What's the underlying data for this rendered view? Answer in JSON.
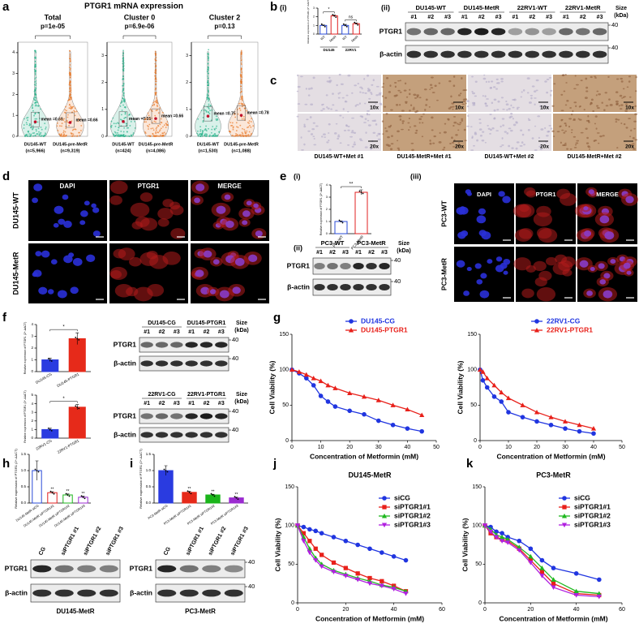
{
  "figure": {
    "a": {
      "label": "a",
      "title": "PTGR1 mRNA expression"
    },
    "b": {
      "label": "b",
      "sub": [
        "(i)",
        "(ii)"
      ],
      "blot": {
        "groups": [
          "DU145-WT",
          "DU145-MetR",
          "22RV1-WT",
          "22RV1-MetR"
        ],
        "lanes": [
          "#1",
          "#2",
          "#3",
          "#1",
          "#2",
          "#3",
          "#1",
          "#2",
          "#3",
          "#1",
          "#2",
          "#3"
        ],
        "rows": [
          "PTGR1",
          "β-actin"
        ],
        "size_header": [
          "Size",
          "(kDa)"
        ],
        "size_markers": [
          40,
          40
        ]
      }
    },
    "c": {
      "label": "c",
      "magnifications": [
        "10x",
        "10x",
        "10x",
        "10x",
        "20x",
        "20x",
        "20x",
        "20x"
      ],
      "captions": [
        "DU145-WT+Met #1",
        "DU145-MetR+Met #1",
        "DU145-WT+Met #2",
        "DU145-MetR+Met #2"
      ]
    },
    "d": {
      "label": "d",
      "columns": [
        "DAPI",
        "PTGR1",
        "MERGE"
      ],
      "rows": [
        "DU145-WT",
        "DU145-MetR"
      ]
    },
    "e": {
      "label": "e",
      "sub": [
        "(i)",
        "(ii)",
        "(iii)"
      ],
      "blot": {
        "groups": [
          "PC3-WT",
          "PC3-MetR"
        ],
        "lanes": [
          "#1",
          "#2",
          "#3",
          "#1",
          "#2",
          "#3"
        ],
        "rows": [
          "PTGR1",
          "β-actin"
        ],
        "size_header": [
          "Size",
          "(kDa)"
        ],
        "size_markers": [
          40,
          40
        ]
      },
      "columns": [
        "DAPI",
        "PTGR1",
        "MERGE"
      ],
      "rows": [
        "PC3-WT",
        "PC3-MetR"
      ]
    },
    "f": {
      "label": "f",
      "blots": [
        {
          "groups": [
            "DU145-CG",
            "DU145-PTGR1"
          ],
          "lanes": [
            "#1",
            "#2",
            "#3",
            "#1",
            "#2",
            "#3"
          ],
          "rows": [
            "PTGR1",
            "β-actin"
          ],
          "size_header": [
            "Size",
            "(kDa)"
          ],
          "size_markers": [
            40,
            40
          ]
        },
        {
          "groups": [
            "22RV1-CG",
            "22RV1-PTGR1"
          ],
          "lanes": [
            "#1",
            "#2",
            "#3",
            "#1",
            "#2",
            "#3"
          ],
          "rows": [
            "PTGR1",
            "β-actin"
          ],
          "size_header": [
            "Size",
            "(kDa)"
          ],
          "size_markers": [
            40,
            40
          ]
        }
      ]
    },
    "g": {
      "label": "g"
    },
    "h": {
      "label": "h",
      "blot": {
        "lanes": [
          "CG",
          "siPTGR1 #1",
          "siPTGR1 #2",
          "siPTGR1 #3"
        ],
        "rows": [
          "PTGR1",
          "β-actin"
        ],
        "caption": "DU145-MetR"
      }
    },
    "i": {
      "label": "i",
      "blot": {
        "lanes": [
          "CG",
          "siPTGR1 #1",
          "siPTGR1 #2",
          "siPTGR1 #3"
        ],
        "rows": [
          "PTGR1",
          "β-actin"
        ],
        "size_markers": [
          40,
          40
        ],
        "caption": "PC3-MetR"
      }
    },
    "j": {
      "label": "j"
    },
    "k": {
      "label": "k"
    }
  },
  "chart_data": [
    {
      "type": "violin",
      "title": "Total",
      "subtitle": "p=1e-05",
      "categories": [
        "DU145-WT",
        "DU145-pre-MetR"
      ],
      "n_labels": [
        "(n=5,966)",
        "(n=9,319)"
      ],
      "values": [
        0.69,
        0.66
      ],
      "value_labels": [
        "mean =0.69",
        "mean =0.66"
      ],
      "colors": [
        "#2bb38c",
        "#e8792a"
      ],
      "ylim": [
        0,
        4.5
      ],
      "yticks": [
        0,
        1,
        2,
        3,
        4
      ]
    },
    {
      "type": "violin",
      "title": "Cluster 0",
      "subtitle": "p=6.9e-06",
      "categories": [
        "DU145-WT",
        "DU145-pre-MetR"
      ],
      "n_labels": [
        "(n=424)",
        "(n=4,086)"
      ],
      "values": [
        0.55,
        0.66
      ],
      "value_labels": [
        "mean =0.55",
        "mean =0.66"
      ],
      "colors": [
        "#2bb38c",
        "#e8792a"
      ],
      "ylim": [
        0,
        3.5
      ],
      "yticks": [
        0,
        1,
        2,
        3
      ]
    },
    {
      "type": "violin",
      "title": "Cluster 2",
      "subtitle": "p=0.13",
      "categories": [
        "DU145-WT",
        "DU145-pre-MetR"
      ],
      "n_labels": [
        "(n=1,530)",
        "(n=1,088)"
      ],
      "values": [
        0.75,
        0.78
      ],
      "value_labels": [
        "mean =0.75",
        "mean =0.78"
      ],
      "colors": [
        "#2bb38c",
        "#e8792a"
      ],
      "ylim": [
        0,
        3.5
      ],
      "yticks": [
        0,
        1,
        2,
        3
      ]
    },
    {
      "type": "bar",
      "ylabel": "Relative expression of PTGR1 (2^-ΔΔCT)",
      "categories": [
        "WT",
        "MetR",
        "WT",
        "MetR"
      ],
      "groups": [
        "DU145",
        "22RV1"
      ],
      "values": [
        1,
        2.1,
        1,
        1.2
      ],
      "errors": [
        0.05,
        0.1,
        0.12,
        0.08
      ],
      "colors": [
        "#2a4bd7",
        "#e02020",
        "#2a4bd7",
        "#e02020"
      ],
      "filled": false,
      "ylim": [
        0,
        3
      ],
      "yticks": [
        0,
        1,
        2,
        3
      ],
      "bracket_labels": [
        "*",
        "ns"
      ]
    },
    {
      "type": "bar",
      "ylabel": "Relative expression of PTGR1 (2^-ΔΔCT)",
      "categories": [
        "PC3-WT",
        "PC3-MetR"
      ],
      "values": [
        1,
        3.4
      ],
      "errors": [
        0.05,
        0.2
      ],
      "colors": [
        "#2a4bd7",
        "#e02020"
      ],
      "filled": false,
      "ylim": [
        0,
        4
      ],
      "yticks": [
        0,
        1,
        2,
        3,
        4
      ],
      "bracket_labels": [
        "**"
      ]
    },
    {
      "type": "bar",
      "ylabel": "Relative expression of PTGR1 (2^-ΔΔCT)",
      "categories": [
        "DU145-CG",
        "DU145-PTGR1"
      ],
      "values": [
        1,
        2.8
      ],
      "errors": [
        0.15,
        0.5
      ],
      "colors": [
        "#2a3be0",
        "#e62a1a"
      ],
      "filled": true,
      "ylim": [
        0,
        4
      ],
      "yticks": [
        0,
        1,
        2,
        3,
        4
      ],
      "bracket_labels": [
        "*"
      ]
    },
    {
      "type": "bar",
      "ylabel": "Relative expression of PTGR1 (2^-ΔΔCT)",
      "categories": [
        "22RV1-CG",
        "22RV1-PTGR1"
      ],
      "values": [
        1,
        3.6
      ],
      "errors": [
        0.15,
        0.3
      ],
      "colors": [
        "#2a3be0",
        "#e62a1a"
      ],
      "filled": true,
      "ylim": [
        0,
        5
      ],
      "yticks": [
        0,
        1,
        2,
        3,
        4,
        5
      ],
      "bracket_labels": [
        "*"
      ]
    },
    {
      "type": "bar",
      "ylabel": "Relative expression of PTGR1 (2^-ΔΔCT)",
      "categories": [
        "DU145-MetR siCG",
        "DU145-MetR siPTGR1#1",
        "DU145-MetR siPTGR1#2",
        "DU145-MetR siPTGR1#3"
      ],
      "values": [
        1,
        0.32,
        0.25,
        0.18
      ],
      "errors": [
        0.3,
        0.03,
        0.03,
        0.03
      ],
      "colors": [
        "#2a4bd7",
        "#e02020",
        "#1bb51b",
        "#9b2bd0"
      ],
      "filled": false,
      "ylim": [
        0,
        1.5
      ],
      "yticks": [
        {
          "value": 0,
          "label": "0.0"
        },
        0.5,
        {
          "value": 1,
          "label": "1.0"
        },
        1.5
      ],
      "bar_annotations": [
        null,
        "**",
        "**",
        "**"
      ]
    },
    {
      "type": "bar",
      "ylabel": "Relative expression of PTGR1 (2^-ΔΔCT)",
      "categories": [
        "PC3-MetR siCG",
        "PC3-MetR siPTGR1#1",
        "PC3-MetR siPTGR1#2",
        "PC3-MetR siPTGR1#3"
      ],
      "values": [
        1,
        0.33,
        0.25,
        0.16
      ],
      "errors": [
        0.15,
        0.03,
        0.02,
        0.02
      ],
      "colors": [
        "#2a3be0",
        "#e62a1a",
        "#1bb51b",
        "#9b2bd0"
      ],
      "filled": true,
      "ylim": [
        0,
        1.5
      ],
      "yticks": [
        {
          "value": 0,
          "label": "0.0"
        },
        0.5,
        {
          "value": 1,
          "label": "1.0"
        },
        1.5
      ],
      "bar_annotations": [
        null,
        "**",
        "**",
        "**"
      ]
    },
    {
      "type": "line",
      "xlabel": "Concentration of Metformin (mM)",
      "ylabel": "Cell Viability (%)",
      "x": [
        0,
        2.5,
        5,
        7.5,
        10,
        12.5,
        15,
        20,
        25,
        30,
        35,
        40,
        45
      ],
      "series": [
        {
          "name": "DU145-CG",
          "color": "#2035e0",
          "marker": "o",
          "values": [
            100,
            95,
            88,
            78,
            63,
            55,
            48,
            42,
            37,
            28,
            22,
            17,
            13
          ]
        },
        {
          "name": "DU145-PTGR1",
          "color": "#e8201a",
          "marker": "^",
          "values": [
            100,
            97,
            93,
            88,
            84,
            78,
            74,
            67,
            62,
            57,
            50,
            44,
            36
          ]
        }
      ],
      "xlim": [
        0,
        50
      ],
      "ylim": [
        0,
        150
      ],
      "xticks": [
        0,
        10,
        20,
        30,
        40,
        50
      ],
      "yticks": [
        0,
        50,
        100,
        150
      ],
      "legend": "upper right",
      "legend_text_colored": true
    },
    {
      "type": "line",
      "xlabel": "Concentration of Metformin (mM)",
      "ylabel": "Cell Viability (%)",
      "x": [
        0,
        1,
        2.5,
        5,
        7.5,
        10,
        15,
        20,
        25,
        30,
        35,
        40
      ],
      "series": [
        {
          "name": "22RV1-CG",
          "color": "#2035e0",
          "marker": "o",
          "values": [
            100,
            85,
            75,
            62,
            55,
            40,
            33,
            27,
            22,
            17,
            13,
            10
          ]
        },
        {
          "name": "22RV1-PTGR1",
          "color": "#e8201a",
          "marker": "^",
          "values": [
            100,
            97,
            88,
            78,
            68,
            60,
            50,
            40,
            33,
            27,
            22,
            17
          ]
        }
      ],
      "xlim": [
        0,
        50
      ],
      "ylim": [
        0,
        150
      ],
      "xticks": [
        0,
        10,
        20,
        30,
        40,
        50
      ],
      "yticks": [
        0,
        50,
        100,
        150
      ],
      "legend": "upper right",
      "legend_text_colored": true
    },
    {
      "type": "line",
      "title": "DU145-MetR",
      "xlabel": "Concentration of Metformin (mM)",
      "ylabel": "Cell Viability (%)",
      "x": [
        0,
        2.5,
        5,
        7.5,
        10,
        15,
        20,
        25,
        30,
        35,
        40,
        45
      ],
      "series": [
        {
          "name": "siCG",
          "color": "#2035e0",
          "marker": "o",
          "values": [
            100,
            98,
            95,
            93,
            90,
            85,
            80,
            75,
            70,
            65,
            60,
            55
          ]
        },
        {
          "name": "siPTGR1#1",
          "color": "#e8201a",
          "marker": "s",
          "values": [
            100,
            90,
            80,
            70,
            62,
            52,
            45,
            38,
            32,
            28,
            22,
            15
          ]
        },
        {
          "name": "siPTGR1#2",
          "color": "#20b820",
          "marker": "^",
          "values": [
            100,
            85,
            70,
            58,
            50,
            42,
            37,
            32,
            28,
            23,
            20,
            15
          ]
        },
        {
          "name": "siPTGR1#3",
          "color": "#b020e0",
          "marker": "v",
          "values": [
            100,
            80,
            65,
            55,
            47,
            40,
            35,
            30,
            25,
            22,
            18,
            12
          ]
        }
      ],
      "xlim": [
        0,
        60
      ],
      "ylim": [
        0,
        150
      ],
      "xticks": [
        0,
        20,
        40,
        60
      ],
      "yticks": [
        0,
        50,
        100,
        150
      ],
      "legend": "upper right",
      "legend_text_colored": false
    },
    {
      "type": "line",
      "title": "PC3-MetR",
      "xlabel": "Concentration of Metformin (mM)",
      "ylabel": "Cell Viability (%)",
      "x": [
        0,
        2.5,
        5,
        7.5,
        10,
        15,
        20,
        25,
        30,
        40,
        50
      ],
      "series": [
        {
          "name": "siCG",
          "color": "#2035e0",
          "marker": "o",
          "values": [
            100,
            98,
            92,
            90,
            85,
            80,
            70,
            55,
            45,
            38,
            30
          ]
        },
        {
          "name": "siPTGR1#1",
          "color": "#e8201a",
          "marker": "s",
          "values": [
            100,
            90,
            85,
            82,
            80,
            70,
            55,
            40,
            25,
            12,
            10
          ]
        },
        {
          "name": "siPTGR1#2",
          "color": "#20b820",
          "marker": "^",
          "values": [
            100,
            95,
            88,
            85,
            82,
            72,
            60,
            45,
            30,
            15,
            12
          ]
        },
        {
          "name": "siPTGR1#3",
          "color": "#b020e0",
          "marker": "v",
          "values": [
            100,
            92,
            85,
            80,
            78,
            68,
            52,
            35,
            20,
            10,
            8
          ]
        }
      ],
      "xlim": [
        0,
        60
      ],
      "ylim": [
        0,
        150
      ],
      "xticks": [
        0,
        20,
        40,
        60
      ],
      "yticks": [
        0,
        50,
        100,
        150
      ],
      "legend": "upper right",
      "legend_text_colored": false
    }
  ]
}
